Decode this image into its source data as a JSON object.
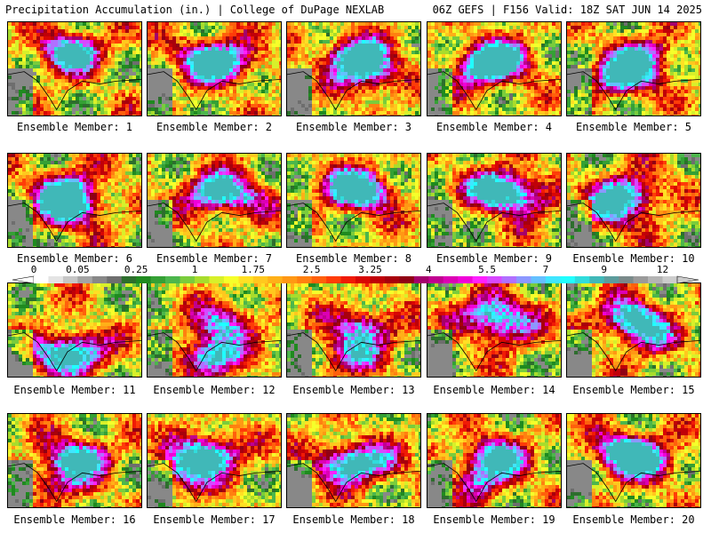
{
  "header": {
    "left": "Precipitation Accumulation (in.) | College of DuPage NEXLAB",
    "right": "06Z GEFS | F156 Valid: 18Z SAT JUN 14 2025"
  },
  "member_label_prefix": "Ensemble Member: ",
  "members": [
    {
      "id": "1",
      "centers": [
        [
          0.45,
          0.3,
          0.9
        ]
      ]
    },
    {
      "id": "2",
      "centers": [
        [
          0.55,
          0.42,
          0.75
        ],
        [
          0.4,
          0.35,
          0.5
        ]
      ]
    },
    {
      "id": "3",
      "centers": [
        [
          0.5,
          0.35,
          0.95
        ],
        [
          0.62,
          0.55,
          0.5
        ]
      ]
    },
    {
      "id": "4",
      "centers": [
        [
          0.42,
          0.45,
          0.8
        ],
        [
          0.55,
          0.35,
          0.6
        ]
      ]
    },
    {
      "id": "5",
      "centers": [
        [
          0.4,
          0.55,
          0.85
        ],
        [
          0.55,
          0.35,
          0.6
        ]
      ]
    },
    {
      "id": "6",
      "centers": [
        [
          0.45,
          0.55,
          0.9
        ],
        [
          0.4,
          0.35,
          0.6
        ]
      ]
    },
    {
      "id": "7",
      "centers": [
        [
          0.48,
          0.38,
          0.75
        ],
        [
          0.7,
          0.45,
          0.4
        ]
      ]
    },
    {
      "id": "8",
      "centers": [
        [
          0.55,
          0.4,
          0.8
        ],
        [
          0.4,
          0.3,
          0.4
        ]
      ]
    },
    {
      "id": "9",
      "centers": [
        [
          0.5,
          0.35,
          0.8
        ],
        [
          0.7,
          0.45,
          0.5
        ]
      ]
    },
    {
      "id": "10",
      "centers": [
        [
          0.45,
          0.4,
          0.75
        ],
        [
          0.3,
          0.6,
          0.5
        ]
      ]
    },
    {
      "id": "11",
      "centers": [
        [
          0.5,
          0.7,
          0.75
        ],
        [
          0.3,
          0.75,
          0.4
        ]
      ]
    },
    {
      "id": "12",
      "centers": [
        [
          0.45,
          0.75,
          0.8
        ],
        [
          0.55,
          0.4,
          0.6
        ]
      ]
    },
    {
      "id": "13",
      "centers": [
        [
          0.55,
          0.45,
          0.65
        ],
        [
          0.45,
          0.75,
          0.5
        ]
      ]
    },
    {
      "id": "14",
      "centers": [
        [
          0.45,
          0.3,
          0.7
        ],
        [
          0.6,
          0.45,
          0.4
        ]
      ]
    },
    {
      "id": "15",
      "centers": [
        [
          0.45,
          0.35,
          0.8
        ],
        [
          0.6,
          0.55,
          0.4
        ]
      ]
    },
    {
      "id": "16",
      "centers": [
        [
          0.5,
          0.45,
          0.85
        ],
        [
          0.35,
          0.7,
          0.4
        ]
      ]
    },
    {
      "id": "17",
      "centers": [
        [
          0.45,
          0.4,
          0.85
        ],
        [
          0.25,
          0.6,
          0.6
        ]
      ]
    },
    {
      "id": "18",
      "centers": [
        [
          0.42,
          0.5,
          0.75
        ],
        [
          0.65,
          0.5,
          0.4
        ]
      ]
    },
    {
      "id": "19",
      "centers": [
        [
          0.48,
          0.45,
          0.8
        ],
        [
          0.4,
          0.7,
          0.4
        ]
      ]
    },
    {
      "id": "20",
      "centers": [
        [
          0.42,
          0.38,
          0.9
        ],
        [
          0.6,
          0.5,
          0.5
        ]
      ]
    }
  ],
  "colorbar": {
    "tick_labels": [
      "0",
      "0.05",
      "0.25",
      "1",
      "1.75",
      "2.5",
      "3.25",
      "4",
      "5.5",
      "7",
      "9",
      "12"
    ],
    "tick_segment_index": [
      0,
      3,
      7,
      11,
      15,
      19,
      23,
      27,
      31,
      35,
      39,
      43
    ],
    "colors": [
      "#ffffff",
      "#e4e4e4",
      "#c6c6c6",
      "#a4a4a4",
      "#888888",
      "#6e6e6e",
      "#2d6e2d",
      "#1f8a1f",
      "#35a035",
      "#4cb64c",
      "#7acc3c",
      "#a8dc2c",
      "#d8f02a",
      "#f6ff2a",
      "#ffe024",
      "#ffc81e",
      "#ffb018",
      "#ff9814",
      "#ff8010",
      "#ff600c",
      "#ff3c08",
      "#f01a06",
      "#d80604",
      "#c00008",
      "#a8000c",
      "#900014",
      "#a4006c",
      "#c00090",
      "#dc00b4",
      "#f000d8",
      "#ff20ff",
      "#d848ff",
      "#b070ff",
      "#8c98ff",
      "#64c0ff",
      "#40e6ff",
      "#20ffff",
      "#30dcdc",
      "#40b8b8",
      "#5c9c9c",
      "#7a8a8a",
      "#9a9a9a",
      "#b4b4b4",
      "#cccccc"
    ]
  }
}
